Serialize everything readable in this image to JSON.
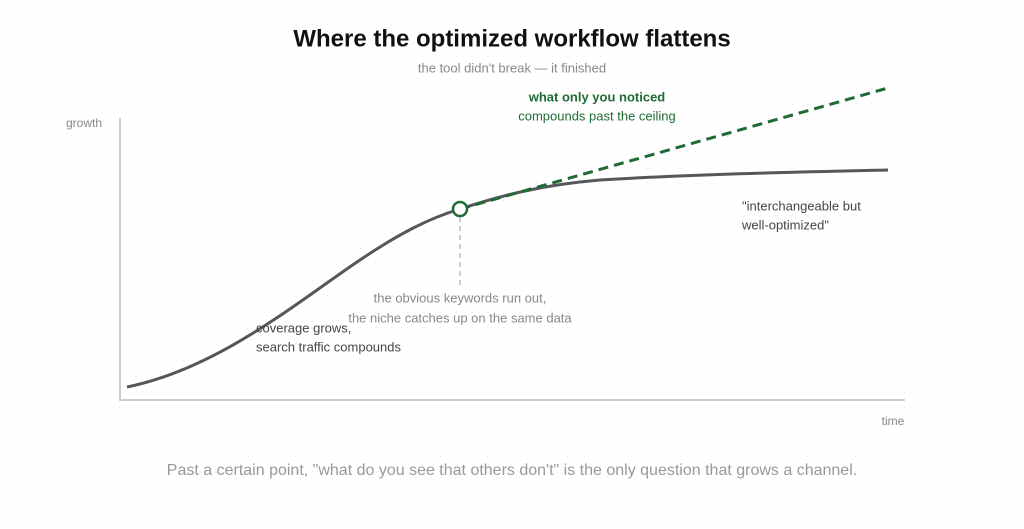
{
  "header": {
    "title": "Where the optimized workflow flattens",
    "subtitle": "the tool didn't break — it finished"
  },
  "axes": {
    "y_label": "growth",
    "x_label": "time"
  },
  "annotations": {
    "noticed": [
      "what only you noticed",
      "compounds past the ceiling"
    ],
    "plateau": [
      "\"interchangeable but",
      "well-optimized\""
    ],
    "turn": [
      "the obvious keywords run out,",
      "the niche catches up on the same data"
    ],
    "early": [
      "coverage grows,",
      "search traffic compounds"
    ]
  },
  "footer": "Past a certain point, \"what do you see that others don't\" is the only question that grows a channel."
}
